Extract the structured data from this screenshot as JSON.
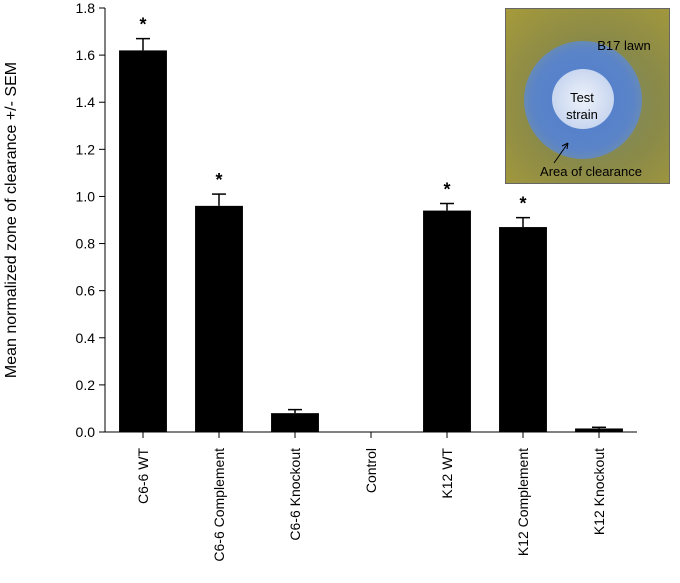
{
  "chart_data": {
    "type": "bar",
    "y_label": "Mean normalized zone of clearance +/- SEM",
    "categories": [
      "C6-6 WT",
      "C6-6 Complement",
      "C6-6 Knockout",
      "Control",
      "K12 WT",
      "K12 Complement",
      "K12 Knockout"
    ],
    "values": [
      1.62,
      0.96,
      0.08,
      0,
      0.94,
      0.87,
      0.015
    ],
    "errors": [
      0.05,
      0.05,
      0.015,
      0,
      0.03,
      0.04,
      0.005
    ],
    "significance": [
      "*",
      "*",
      null,
      null,
      "*",
      "*",
      null
    ],
    "color": "#000000",
    "ylim": [
      0,
      1.8
    ],
    "yticks": [
      {
        "value": 0,
        "label": "0.0"
      },
      0.2,
      0.4,
      0.6,
      0.8,
      {
        "value": 1,
        "label": "1.0"
      },
      1.2,
      1.4,
      1.6,
      1.8
    ],
    "inset": {
      "lawn": "B17 lawn",
      "strain": "Test strain",
      "clearance": "Area of clearance"
    }
  }
}
